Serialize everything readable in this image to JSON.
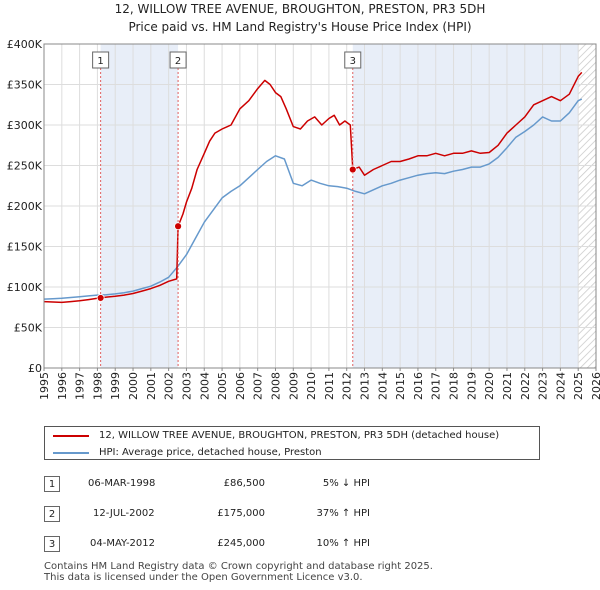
{
  "chart_data": {
    "type": "line",
    "title": "12, WILLOW TREE AVENUE, BROUGHTON, PRESTON, PR3 5DH",
    "subtitle": "Price paid vs. HM Land Registry's House Price Index (HPI)",
    "xlim": [
      1995,
      2026
    ],
    "ylim": [
      0,
      400000
    ],
    "x_ticks": [
      "1995",
      "1996",
      "1997",
      "1998",
      "1999",
      "2000",
      "2001",
      "2002",
      "2003",
      "2004",
      "2005",
      "2006",
      "2007",
      "2008",
      "2009",
      "2010",
      "2011",
      "2012",
      "2013",
      "2014",
      "2015",
      "2016",
      "2017",
      "2018",
      "2019",
      "2020",
      "2021",
      "2022",
      "2023",
      "2024",
      "2025",
      "2026"
    ],
    "y_ticks": [
      {
        "value": 0,
        "label": "£0"
      },
      {
        "value": 50000,
        "label": "£50K"
      },
      {
        "value": 100000,
        "label": "£100K"
      },
      {
        "value": 150000,
        "label": "£150K"
      },
      {
        "value": 200000,
        "label": "£200K"
      },
      {
        "value": 250000,
        "label": "£250K"
      },
      {
        "value": 300000,
        "label": "£300K"
      },
      {
        "value": 350000,
        "label": "£350K"
      },
      {
        "value": 400000,
        "label": "£400K"
      }
    ],
    "grid": true,
    "shaded_periods": [
      [
        1998.18,
        2002.53
      ],
      [
        2012.34,
        2025.0
      ]
    ],
    "forecast_start": 2025.0,
    "series": [
      {
        "name": "12, WILLOW TREE AVENUE, BROUGHTON, PRESTON, PR3 5DH (detached house)",
        "color": "#cc0000",
        "x": [
          1995.0,
          1995.5,
          1996.0,
          1996.5,
          1997.0,
          1997.5,
          1998.0,
          1998.18,
          1998.5,
          1999.0,
          1999.5,
          2000.0,
          2000.5,
          2001.0,
          2001.5,
          2002.0,
          2002.45,
          2002.53,
          2002.8,
          2003.0,
          2003.3,
          2003.6,
          2004.0,
          2004.3,
          2004.6,
          2005.0,
          2005.5,
          2006.0,
          2006.5,
          2007.0,
          2007.4,
          2007.7,
          2008.0,
          2008.3,
          2008.6,
          2009.0,
          2009.4,
          2009.8,
          2010.2,
          2010.6,
          2011.0,
          2011.3,
          2011.6,
          2011.9,
          2012.2,
          2012.34,
          2012.7,
          2013.0,
          2013.5,
          2014.0,
          2014.5,
          2015.0,
          2015.5,
          2016.0,
          2016.5,
          2017.0,
          2017.5,
          2018.0,
          2018.5,
          2019.0,
          2019.5,
          2020.0,
          2020.5,
          2021.0,
          2021.5,
          2022.0,
          2022.5,
          2023.0,
          2023.5,
          2024.0,
          2024.5,
          2025.0,
          2025.2
        ],
        "y": [
          82000,
          81500,
          81000,
          82000,
          83000,
          84500,
          86000,
          86500,
          87500,
          88500,
          90000,
          92000,
          95000,
          98000,
          102000,
          107000,
          110000,
          175000,
          190000,
          205000,
          222000,
          245000,
          265000,
          280000,
          290000,
          295000,
          300000,
          320000,
          330000,
          345000,
          355000,
          350000,
          340000,
          335000,
          320000,
          298000,
          295000,
          305000,
          310000,
          300000,
          308000,
          312000,
          300000,
          305000,
          300000,
          245000,
          248000,
          238000,
          245000,
          250000,
          255000,
          255000,
          258000,
          262000,
          262000,
          265000,
          262000,
          265000,
          265000,
          268000,
          265000,
          266000,
          275000,
          290000,
          300000,
          310000,
          325000,
          330000,
          335000,
          330000,
          338000,
          360000,
          365000
        ]
      },
      {
        "name": "HPI: Average price, detached house, Preston",
        "color": "#6699cc",
        "x": [
          1995.0,
          1995.5,
          1996.0,
          1996.5,
          1997.0,
          1997.5,
          1998.0,
          1998.5,
          1999.0,
          1999.5,
          2000.0,
          2000.5,
          2001.0,
          2001.5,
          2002.0,
          2002.5,
          2003.0,
          2003.5,
          2004.0,
          2004.5,
          2005.0,
          2005.5,
          2006.0,
          2006.5,
          2007.0,
          2007.5,
          2008.0,
          2008.5,
          2009.0,
          2009.5,
          2010.0,
          2010.5,
          2011.0,
          2011.5,
          2012.0,
          2012.5,
          2013.0,
          2013.5,
          2014.0,
          2014.5,
          2015.0,
          2015.5,
          2016.0,
          2016.5,
          2017.0,
          2017.5,
          2018.0,
          2018.5,
          2019.0,
          2019.5,
          2020.0,
          2020.5,
          2021.0,
          2021.5,
          2022.0,
          2022.5,
          2023.0,
          2023.5,
          2024.0,
          2024.5,
          2025.0,
          2025.2
        ],
        "y": [
          85000,
          85500,
          86000,
          87000,
          88000,
          89000,
          90000,
          90500,
          91500,
          93000,
          95000,
          98000,
          101000,
          106000,
          112000,
          125000,
          140000,
          160000,
          180000,
          195000,
          210000,
          218000,
          225000,
          235000,
          245000,
          255000,
          262000,
          258000,
          228000,
          225000,
          232000,
          228000,
          225000,
          224000,
          222000,
          218000,
          215000,
          220000,
          225000,
          228000,
          232000,
          235000,
          238000,
          240000,
          241000,
          240000,
          243000,
          245000,
          248000,
          248000,
          252000,
          260000,
          272000,
          285000,
          292000,
          300000,
          310000,
          305000,
          305000,
          315000,
          330000,
          332000
        ]
      }
    ],
    "markers": [
      {
        "label": "1",
        "x": 1998.18,
        "y": 86500
      },
      {
        "label": "2",
        "x": 2002.53,
        "y": 175000
      },
      {
        "label": "3",
        "x": 2012.34,
        "y": 245000
      }
    ]
  },
  "legend": {
    "items": [
      {
        "label": "12, WILLOW TREE AVENUE, BROUGHTON, PRESTON, PR3 5DH (detached house)",
        "color": "#cc0000"
      },
      {
        "label": "HPI: Average price, detached house, Preston",
        "color": "#6699cc"
      }
    ]
  },
  "sales": [
    {
      "num": "1",
      "date": "06-MAR-1998",
      "price": "£86,500",
      "hpi": "5% ↓ HPI"
    },
    {
      "num": "2",
      "date": "12-JUL-2002",
      "price": "£175,000",
      "hpi": "37% ↑ HPI"
    },
    {
      "num": "3",
      "date": "04-MAY-2012",
      "price": "£245,000",
      "hpi": "10% ↑ HPI"
    }
  ],
  "footer": {
    "line1": "Contains HM Land Registry data © Crown copyright and database right 2025.",
    "line2": "This data is licensed under the Open Government Licence v3.0."
  }
}
